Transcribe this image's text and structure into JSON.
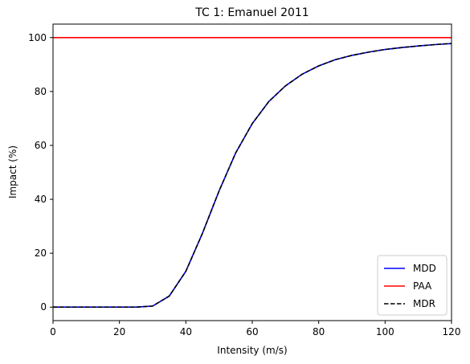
{
  "chart_data": {
    "type": "line",
    "title": "TC 1: Emanuel 2011",
    "xlabel": "Intensity (m/s)",
    "ylabel": "Impact (%)",
    "xlim": [
      0,
      120
    ],
    "ylim": [
      -5,
      105
    ],
    "xticks": [
      0,
      20,
      40,
      60,
      80,
      100,
      120
    ],
    "yticks": [
      0,
      20,
      40,
      60,
      80,
      100
    ],
    "grid": false,
    "legend_position": "lower-right",
    "x": [
      0,
      5,
      10,
      15,
      20,
      25,
      30,
      35,
      40,
      45,
      50,
      55,
      60,
      65,
      70,
      75,
      80,
      85,
      90,
      95,
      100,
      105,
      110,
      115,
      120
    ],
    "series": [
      {
        "name": "MDD",
        "color": "#0000ff",
        "style": "solid",
        "values": [
          0,
          0,
          0,
          0,
          0,
          0,
          0.4,
          4.1,
          13.3,
          27.4,
          43.1,
          57.2,
          68.1,
          76.3,
          82.1,
          86.4,
          89.5,
          91.8,
          93.4,
          94.6,
          95.6,
          96.3,
          96.9,
          97.4,
          97.8
        ]
      },
      {
        "name": "PAA",
        "color": "#ff0000",
        "style": "solid",
        "values": [
          100,
          100,
          100,
          100,
          100,
          100,
          100,
          100,
          100,
          100,
          100,
          100,
          100,
          100,
          100,
          100,
          100,
          100,
          100,
          100,
          100,
          100,
          100,
          100,
          100
        ]
      },
      {
        "name": "MDR",
        "color": "#000000",
        "style": "dashed",
        "values": [
          0,
          0,
          0,
          0,
          0,
          0,
          0.4,
          4.1,
          13.3,
          27.4,
          43.1,
          57.2,
          68.1,
          76.3,
          82.1,
          86.4,
          89.5,
          91.8,
          93.4,
          94.6,
          95.6,
          96.3,
          96.9,
          97.4,
          97.8
        ]
      }
    ]
  }
}
